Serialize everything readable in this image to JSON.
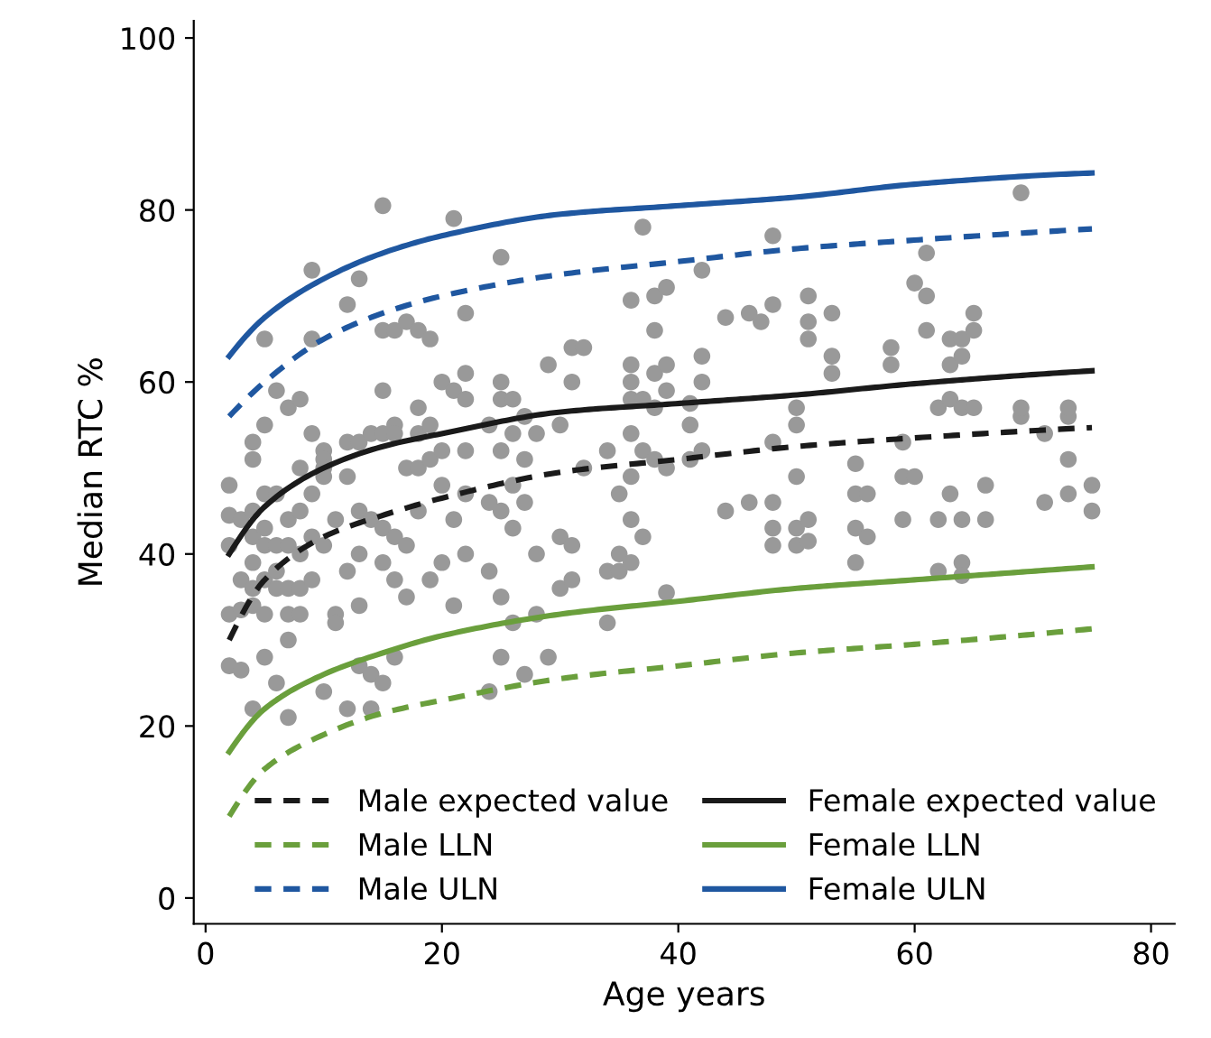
{
  "chart_data": {
    "type": "line",
    "xlabel": "Age years",
    "ylabel": "Median RTC %",
    "xlim": [
      -1,
      82
    ],
    "ylim": [
      -3,
      102
    ],
    "xticks": [
      0,
      20,
      40,
      60,
      80
    ],
    "yticks": [
      0,
      20,
      40,
      60,
      80,
      100
    ],
    "grid": false,
    "legend": "bottom right",
    "marker": "none",
    "series": [
      {
        "type": "scatter",
        "color": "#999999",
        "marker": "circle",
        "x": [
          2,
          2,
          2,
          2,
          2,
          3,
          3,
          3,
          3,
          4,
          4,
          4,
          4,
          4,
          4,
          4,
          4,
          5,
          5,
          5,
          5,
          5,
          5,
          5,
          5,
          6,
          6,
          6,
          6,
          6,
          6,
          7,
          7,
          7,
          7,
          7,
          7,
          7,
          8,
          8,
          8,
          8,
          8,
          8,
          9,
          9,
          9,
          9,
          9,
          9,
          10,
          10,
          10,
          10,
          10,
          10,
          11,
          11,
          11,
          12,
          12,
          12,
          12,
          12,
          13,
          13,
          13,
          13,
          13,
          13,
          14,
          14,
          14,
          14,
          15,
          15,
          15,
          15,
          15,
          15,
          15,
          16,
          16,
          16,
          16,
          16,
          16,
          17,
          17,
          17,
          17,
          18,
          18,
          18,
          18,
          18,
          19,
          19,
          19,
          19,
          20,
          20,
          20,
          20,
          21,
          21,
          21,
          21,
          22,
          22,
          22,
          22,
          22,
          22,
          24,
          24,
          24,
          24,
          25,
          25,
          25,
          25,
          25,
          25,
          25,
          26,
          26,
          26,
          26,
          26,
          27,
          27,
          27,
          27,
          28,
          28,
          28,
          29,
          29,
          30,
          30,
          30,
          31,
          31,
          31,
          31,
          32,
          32,
          34,
          34,
          34,
          35,
          35,
          35,
          36,
          36,
          36,
          36,
          36,
          36,
          36,
          36,
          37,
          37,
          37,
          37,
          38,
          38,
          38,
          38,
          38,
          39,
          39,
          39,
          39,
          39,
          41,
          41,
          41,
          42,
          42,
          42,
          42,
          44,
          44,
          46,
          46,
          47,
          48,
          48,
          48,
          48,
          48,
          48,
          50,
          50,
          50,
          50,
          50,
          51,
          51,
          51,
          51,
          51,
          53,
          53,
          53,
          55,
          55,
          55,
          55,
          56,
          56,
          58,
          58,
          59,
          59,
          59,
          60,
          60,
          61,
          61,
          61,
          62,
          62,
          62,
          63,
          63,
          63,
          63,
          64,
          64,
          64,
          64,
          64,
          64,
          65,
          65,
          65,
          66,
          66,
          69,
          69,
          69,
          71,
          71,
          73,
          73,
          73,
          73,
          75,
          75
        ],
        "values": [
          48,
          44.5,
          41,
          33,
          27,
          37,
          33.5,
          26.5,
          44,
          53,
          51,
          45,
          42,
          39,
          36,
          34,
          22,
          65,
          55,
          47,
          43,
          41,
          37,
          33,
          28,
          59,
          47,
          41,
          38,
          36,
          25,
          57,
          44,
          41,
          36,
          33,
          30,
          21,
          58,
          50,
          45,
          40,
          36,
          33,
          65,
          73,
          54,
          47,
          42,
          37,
          52,
          51,
          50,
          49,
          41,
          24,
          44,
          33,
          32,
          69,
          53,
          49,
          38,
          22,
          72,
          53,
          45,
          40,
          34,
          27,
          54,
          44,
          26,
          22,
          80.5,
          66,
          59,
          54,
          43,
          39,
          25,
          66,
          55,
          54,
          42,
          37,
          28,
          67,
          50,
          41,
          35,
          66,
          57,
          54,
          50,
          45,
          65,
          55,
          51,
          37,
          60,
          52,
          48,
          39,
          79,
          59,
          44,
          34,
          68,
          61,
          58,
          52,
          47,
          40,
          55,
          46,
          38,
          24,
          74.5,
          60,
          58,
          52,
          45,
          35,
          28,
          58,
          54,
          48,
          43,
          32,
          56,
          51,
          46,
          26,
          54,
          40,
          33,
          62,
          28,
          55,
          42,
          36,
          64,
          60,
          41,
          37,
          64,
          50,
          52,
          38,
          32,
          47,
          40,
          38,
          69.5,
          62,
          60,
          58,
          54,
          49,
          44,
          39,
          78,
          58,
          52,
          42,
          70,
          66,
          61,
          57,
          51,
          71,
          62,
          59,
          50,
          35.5,
          57.5,
          55,
          51,
          73,
          63,
          60,
          52,
          67.5,
          45,
          46,
          68,
          67,
          69,
          77,
          53,
          46,
          43,
          41,
          57,
          55,
          49,
          43,
          41,
          65,
          70,
          67,
          44,
          41.5,
          63,
          68,
          61,
          50.5,
          47,
          43,
          39,
          47,
          42,
          64,
          62,
          53,
          49,
          44,
          71.5,
          49,
          75,
          70,
          66,
          57,
          44,
          38,
          65,
          62,
          58,
          47,
          65,
          63,
          57,
          44,
          39,
          37.5,
          68,
          66,
          57,
          48,
          44,
          82,
          56,
          57,
          46,
          54,
          47,
          56,
          57,
          51,
          48,
          45
        ]
      },
      {
        "name": "Male expected value",
        "color": "#1a1a1a",
        "line_style": "dashed",
        "x": [
          2,
          5,
          10,
          15,
          20,
          30,
          40,
          50,
          60,
          75
        ],
        "values": [
          30,
          37,
          42,
          44.5,
          46.5,
          49.5,
          51,
          52.5,
          53.5,
          54.7
        ]
      },
      {
        "name": "Male LLN",
        "color": "#6a9f3c",
        "line_style": "dashed",
        "x": [
          2,
          5,
          10,
          15,
          20,
          30,
          40,
          50,
          60,
          75
        ],
        "values": [
          9.5,
          15,
          19,
          21.5,
          23,
          25.5,
          27,
          28.5,
          29.5,
          31.3
        ]
      },
      {
        "name": "Male ULN",
        "color": "#1f57a0",
        "line_style": "dashed",
        "x": [
          2,
          5,
          10,
          15,
          20,
          30,
          40,
          50,
          60,
          75
        ],
        "values": [
          56,
          60,
          65,
          68,
          70,
          72.5,
          74,
          75.5,
          76.5,
          77.8
        ]
      },
      {
        "name": "Female expected value",
        "color": "#1a1a1a",
        "line_style": "solid",
        "x": [
          2,
          5,
          10,
          15,
          20,
          30,
          40,
          50,
          60,
          75
        ],
        "values": [
          40,
          45.5,
          50,
          52.5,
          54,
          56.5,
          57.5,
          58.5,
          59.8,
          61.3
        ]
      },
      {
        "name": "Female LLN",
        "color": "#6a9f3c",
        "line_style": "solid",
        "x": [
          2,
          5,
          10,
          15,
          20,
          30,
          40,
          50,
          60,
          75
        ],
        "values": [
          17,
          22,
          26,
          28.5,
          30.5,
          33,
          34.5,
          36,
          37,
          38.5
        ]
      },
      {
        "name": "Female ULN",
        "color": "#1f57a0",
        "line_style": "solid",
        "x": [
          2,
          5,
          10,
          15,
          20,
          30,
          40,
          50,
          60,
          75
        ],
        "values": [
          63,
          67.5,
          72,
          75,
          77,
          79.5,
          80.5,
          81.5,
          83,
          84.3
        ]
      }
    ]
  }
}
